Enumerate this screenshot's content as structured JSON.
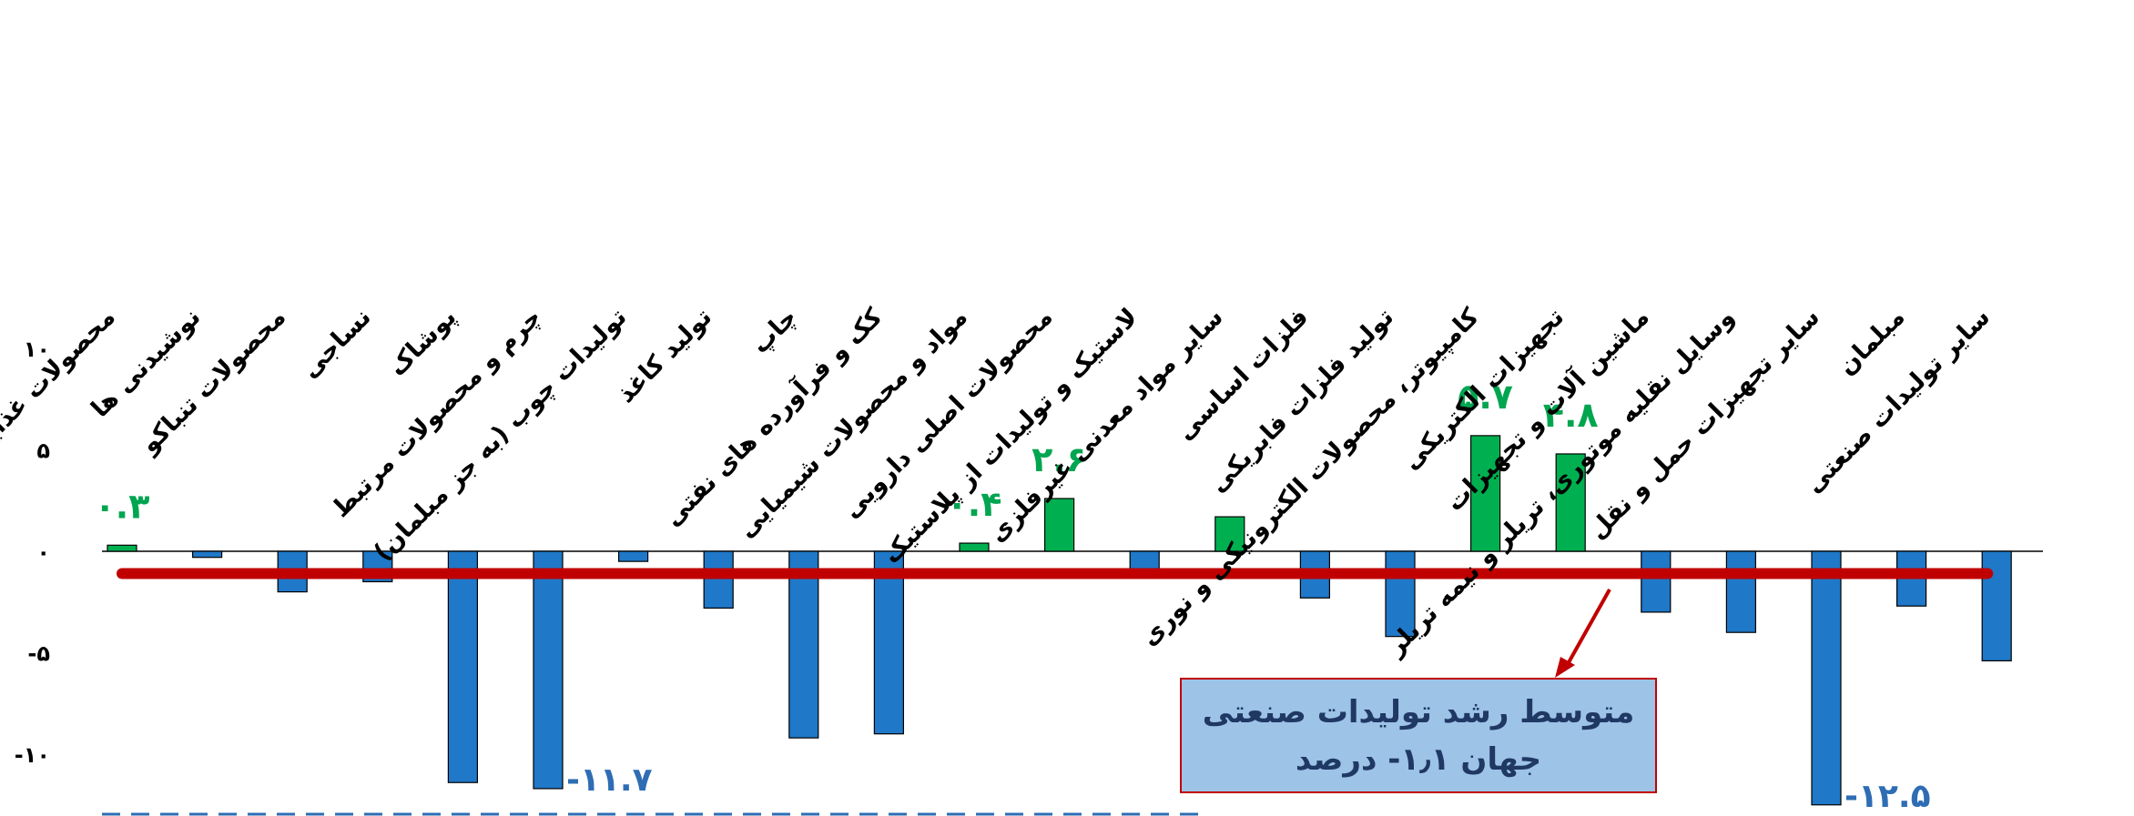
{
  "chart_data": {
    "type": "bar",
    "categories": [
      "محصولات غذایی",
      "نوشیدنی ها",
      "محصولات تنباکو",
      "نساجی",
      "پوشاک",
      "چرم و محصولات مرتبط",
      "تولیدات چوب (به جز مبلمان)",
      "تولید کاغذ",
      "چاپ",
      "کک و فرآورده های نفتی",
      "مواد و محصولات شیمیایی",
      "محصولات اصلی دارویی",
      "لاستیک و تولیدات از پلاستیک",
      "سایر مواد معدنی غیرفلزی",
      "فلزات اساسی",
      "تولید فلزات فابریکی",
      "کامپیوتر، محصولات الکترونیکی و نوری",
      "تجهیزات الکتریکی",
      "ماشین آلات و تجهیزات",
      "وسایل نقلیه موتوری، تریلر و نیمه تریلر",
      "سایر تجهیزات حمل و نقل",
      "مبلمان",
      "سایر تولیدات صنعتی"
    ],
    "values": [
      0.3,
      -0.3,
      -2.0,
      -1.5,
      -11.4,
      -11.7,
      -0.5,
      -2.8,
      -9.2,
      -9.0,
      0.4,
      2.6,
      -0.9,
      1.7,
      -2.3,
      -4.2,
      5.7,
      4.8,
      -3.0,
      -4.0,
      -12.5,
      -2.7,
      -5.4
    ],
    "data_labels": [
      "۰.۳",
      "",
      "",
      "",
      "",
      "-۱۱.۷",
      "",
      "",
      "",
      "",
      "۰.۴",
      "۲.۶",
      "",
      "",
      "",
      "",
      "۵.۷",
      "۴.۸",
      "",
      "",
      "-۱۲.۵",
      "",
      ""
    ],
    "y_ticks": [
      10,
      5,
      0,
      -5,
      -10
    ],
    "y_tick_labels": [
      "۱۰",
      "۵",
      "۰",
      "-۵",
      "-۱۰"
    ],
    "ylim": [
      -12.5,
      10
    ],
    "average_line": -1.1,
    "grid": false,
    "colors": {
      "positive": "#00b050",
      "negative": "#1f78c8",
      "positive_label": "#00a550",
      "negative_label": "#2e6db4",
      "average_line": "#c00000",
      "callout_fill": "#9dc3e6",
      "callout_border": "#c00000",
      "callout_text": "#1f3864"
    }
  },
  "callout": {
    "line1": "متوسط رشد تولیدات صنعتی",
    "line2": "جهان ۱٫۱- درصد"
  }
}
